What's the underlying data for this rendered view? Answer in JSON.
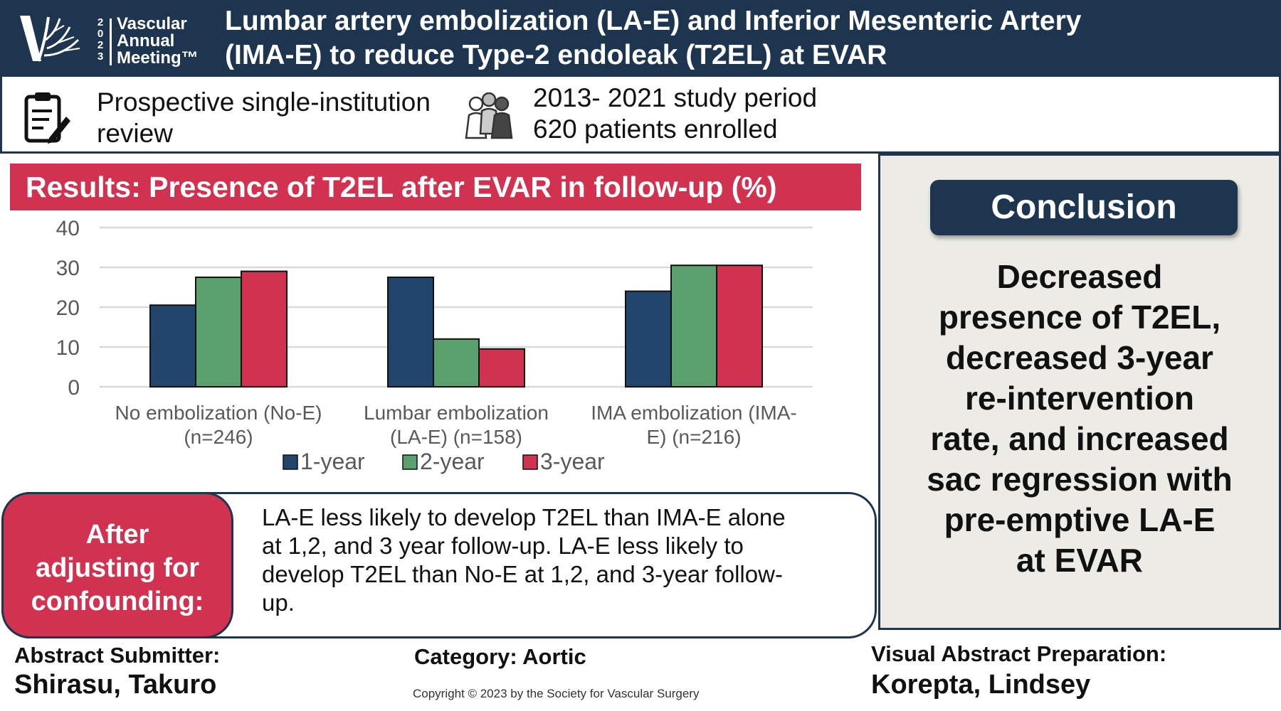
{
  "header": {
    "logo": {
      "year_digits": [
        "2",
        "0",
        "2",
        "3"
      ],
      "lines": [
        "Vascular",
        "Annual",
        "Meeting™"
      ]
    },
    "title_line1": "Lumbar artery embolization (LA-E) and Inferior Mesenteric Artery",
    "title_line2": "(IMA-E) to reduce Type-2 endoleak (T2EL) at EVAR"
  },
  "info": {
    "left_line1": "Prospective single-institution",
    "left_line2": "review",
    "right_line1": "2013- 2021 study period",
    "right_line2": "620 patients enrolled",
    "icons": [
      "clipboard-icon",
      "people-group-icon"
    ]
  },
  "results": {
    "banner": "Results: Presence of T2EL after EVAR in follow-up (%)"
  },
  "chart_data": {
    "type": "bar",
    "title": "Results: Presence of T2EL after EVAR in follow-up (%)",
    "categories": [
      [
        "No embolization (No-E)",
        "(n=246)"
      ],
      [
        "Lumbar embolization",
        "(LA-E) (n=158)"
      ],
      [
        "IMA embolization (IMA-",
        "E) (n=216)"
      ]
    ],
    "series": [
      {
        "name": "1-year",
        "values": [
          20.5,
          27.5,
          24
        ],
        "color": "#22456b"
      },
      {
        "name": "2-year",
        "values": [
          27.5,
          12,
          30.5
        ],
        "color": "#5aa06c"
      },
      {
        "name": "3-year",
        "values": [
          29,
          9.5,
          30.5
        ],
        "color": "#d0324f"
      }
    ],
    "yticks": [
      0,
      10,
      20,
      30,
      40
    ],
    "ylim": [
      0,
      40
    ],
    "xlabel": "",
    "ylabel": "",
    "grid": true,
    "legend": "bottom"
  },
  "conclusion": {
    "button": "Conclusion",
    "lines": [
      "Decreased",
      "presence of T2EL,",
      "decreased 3-year",
      "re-intervention",
      "rate, and increased",
      "sac regression with",
      "pre-emptive LA-E",
      "at EVAR"
    ]
  },
  "adjusting": {
    "label_lines": [
      "After",
      "adjusting for",
      "confounding:"
    ],
    "text_lines": [
      "LA-E less likely to develop T2EL than IMA-E alone",
      "at 1,2, and 3 year follow-up.  LA-E less likely to",
      "develop T2EL than No-E at 1,2, and 3-year follow-",
      "up."
    ]
  },
  "footer": {
    "submitter_label": "Abstract Submitter:",
    "submitter_name": "Shirasu, Takuro",
    "category": "Category: Aortic",
    "copyright": "Copyright © 2023 by the Society for Vascular Surgery",
    "prep_label": "Visual Abstract Preparation:",
    "prep_name": "Korepta, Lindsey"
  }
}
